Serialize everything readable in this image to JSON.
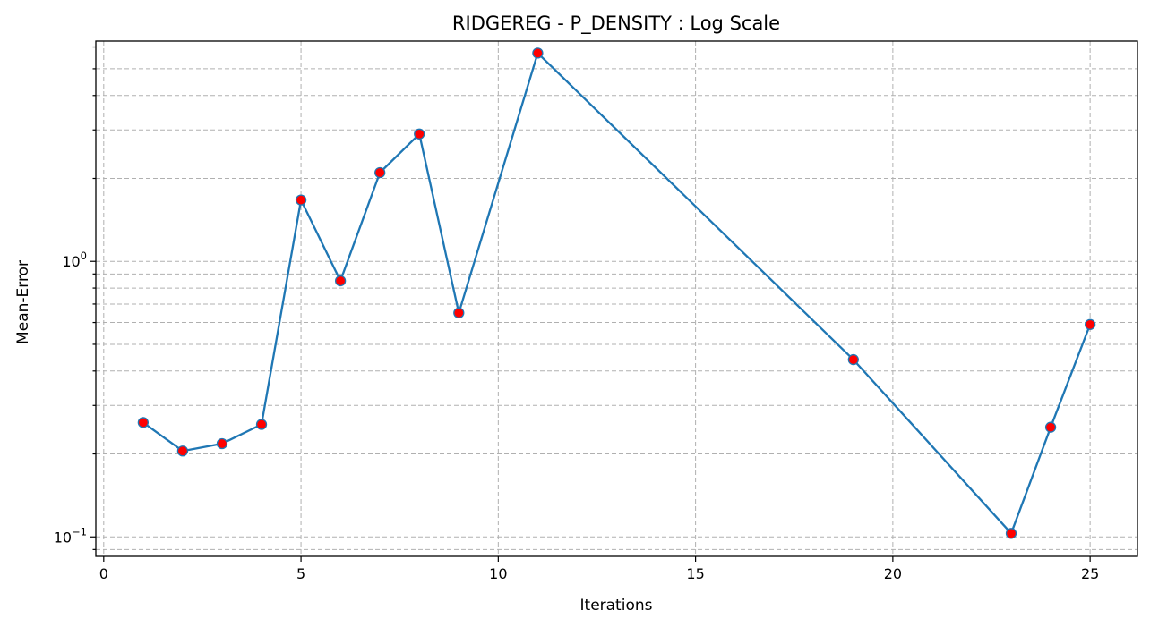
{
  "chart_data": {
    "type": "line",
    "title": "RIDGEREG - P_DENSITY : Log Scale",
    "xlabel": "Iterations",
    "ylabel": "Mean-Error",
    "yscale": "log",
    "xlim": [
      -0.2,
      26.2
    ],
    "ylim": [
      0.085,
      6.3
    ],
    "x_ticks": [
      0,
      5,
      10,
      15,
      20,
      25
    ],
    "x_tick_labels": [
      "0",
      "5",
      "10",
      "15",
      "20",
      "25"
    ],
    "y_major_ticks": [
      0.1,
      1
    ],
    "y_major_tick_labels": [
      {
        "base": "10",
        "exp": "−1"
      },
      {
        "base": "10",
        "exp": "0"
      }
    ],
    "y_minor_ticks": [
      0.09,
      0.2,
      0.3,
      0.4,
      0.5,
      0.6,
      0.7,
      0.8,
      0.9,
      2,
      3,
      4,
      5,
      6
    ],
    "grid": true,
    "line_color": "#1f77b4",
    "marker_face_color": "#ff0000",
    "marker_edge_color": "#1f77b4",
    "series": [
      {
        "x": [
          1,
          2,
          3,
          4,
          5,
          6,
          7,
          8,
          9,
          11,
          19,
          23,
          24,
          25
        ],
        "values": [
          0.26,
          0.205,
          0.218,
          0.256,
          1.67,
          0.85,
          2.1,
          2.9,
          0.65,
          5.7,
          0.44,
          0.103,
          0.25,
          0.59
        ]
      }
    ]
  }
}
